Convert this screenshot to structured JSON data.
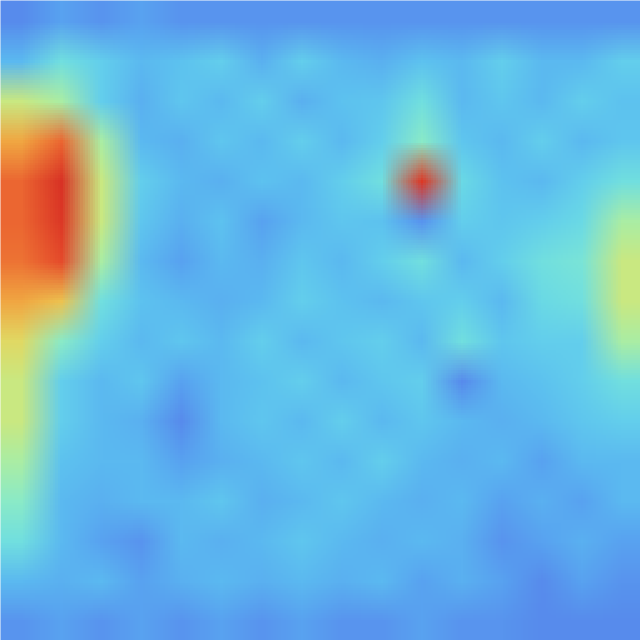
{
  "chart_data": {
    "type": "heatmap",
    "tick_labels": false,
    "zlim": [
      0,
      1
    ],
    "cells": [
      [
        0.2,
        0.25,
        0.22,
        0.25,
        0.22,
        0.22,
        0.22,
        0.22,
        0.22,
        0.22,
        0.22,
        0.22,
        0.22,
        0.22,
        0.22,
        0.22
      ],
      [
        0.3,
        0.4,
        0.35,
        0.3,
        0.32,
        0.35,
        0.28,
        0.35,
        0.3,
        0.28,
        0.32,
        0.3,
        0.35,
        0.3,
        0.3,
        0.35
      ],
      [
        0.55,
        0.5,
        0.35,
        0.28,
        0.33,
        0.3,
        0.35,
        0.28,
        0.32,
        0.33,
        0.4,
        0.3,
        0.33,
        0.3,
        0.35,
        0.32
      ],
      [
        0.7,
        0.8,
        0.5,
        0.3,
        0.28,
        0.33,
        0.3,
        0.35,
        0.3,
        0.35,
        0.45,
        0.33,
        0.3,
        0.35,
        0.3,
        0.33
      ],
      [
        0.8,
        0.92,
        0.55,
        0.35,
        0.3,
        0.28,
        0.32,
        0.3,
        0.35,
        0.4,
        0.9,
        0.38,
        0.32,
        0.3,
        0.35,
        0.4
      ],
      [
        0.8,
        0.9,
        0.55,
        0.33,
        0.28,
        0.32,
        0.25,
        0.3,
        0.33,
        0.32,
        0.22,
        0.35,
        0.33,
        0.35,
        0.38,
        0.5
      ],
      [
        0.78,
        0.85,
        0.5,
        0.3,
        0.25,
        0.3,
        0.28,
        0.33,
        0.3,
        0.35,
        0.4,
        0.3,
        0.35,
        0.4,
        0.42,
        0.55
      ],
      [
        0.7,
        0.65,
        0.4,
        0.32,
        0.3,
        0.28,
        0.3,
        0.35,
        0.32,
        0.3,
        0.33,
        0.35,
        0.3,
        0.38,
        0.4,
        0.55
      ],
      [
        0.6,
        0.45,
        0.35,
        0.3,
        0.33,
        0.3,
        0.35,
        0.3,
        0.33,
        0.35,
        0.3,
        0.4,
        0.33,
        0.35,
        0.35,
        0.5
      ],
      [
        0.55,
        0.35,
        0.3,
        0.33,
        0.25,
        0.3,
        0.32,
        0.35,
        0.3,
        0.33,
        0.35,
        0.2,
        0.3,
        0.32,
        0.35,
        0.4
      ],
      [
        0.55,
        0.35,
        0.3,
        0.28,
        0.2,
        0.3,
        0.33,
        0.3,
        0.35,
        0.3,
        0.33,
        0.3,
        0.28,
        0.3,
        0.33,
        0.35
      ],
      [
        0.5,
        0.32,
        0.3,
        0.3,
        0.25,
        0.28,
        0.3,
        0.33,
        0.3,
        0.35,
        0.3,
        0.28,
        0.3,
        0.25,
        0.3,
        0.3
      ],
      [
        0.45,
        0.3,
        0.28,
        0.3,
        0.3,
        0.33,
        0.28,
        0.3,
        0.33,
        0.3,
        0.28,
        0.3,
        0.25,
        0.28,
        0.25,
        0.3
      ],
      [
        0.4,
        0.3,
        0.25,
        0.22,
        0.3,
        0.28,
        0.3,
        0.33,
        0.3,
        0.28,
        0.3,
        0.28,
        0.22,
        0.25,
        0.28,
        0.25
      ],
      [
        0.3,
        0.28,
        0.3,
        0.25,
        0.28,
        0.3,
        0.28,
        0.3,
        0.28,
        0.3,
        0.25,
        0.28,
        0.25,
        0.2,
        0.25,
        0.22
      ],
      [
        0.22,
        0.25,
        0.22,
        0.25,
        0.22,
        0.25,
        0.22,
        0.25,
        0.22,
        0.22,
        0.25,
        0.22,
        0.22,
        0.2,
        0.2,
        0.2
      ]
    ]
  }
}
